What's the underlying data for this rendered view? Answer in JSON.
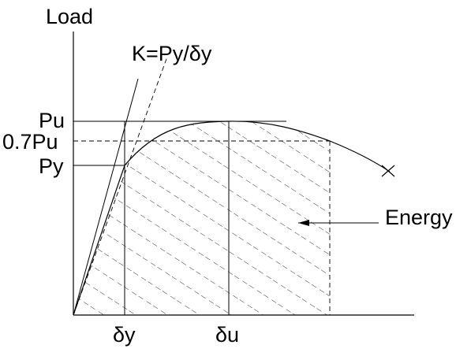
{
  "labels": {
    "y_axis": "Load",
    "stiffness": "K=Py/δy",
    "pu": "Pu",
    "pu07": "0.7Pu",
    "py": "Py",
    "energy": "Energy",
    "dy": "δy",
    "du": "δu"
  },
  "colors": {
    "line": "#000000",
    "background": "#ffffff"
  }
}
